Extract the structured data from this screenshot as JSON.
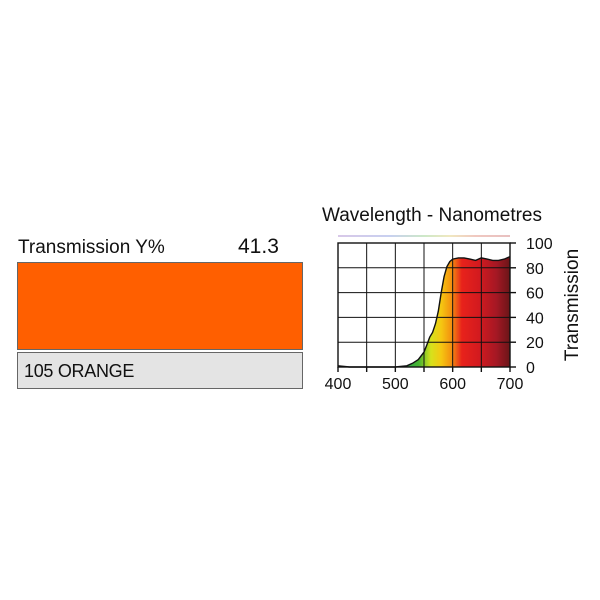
{
  "filter": {
    "transmission_label": "Transmission Y%",
    "transmission_value": "41.3",
    "swatch_color": "#ff5f00",
    "name": "105 ORANGE"
  },
  "chart_data": {
    "type": "area",
    "title": "Wavelength - Nanometres",
    "xlabel": "",
    "ylabel": "Transmission",
    "xlim": [
      400,
      700
    ],
    "ylim": [
      0,
      100
    ],
    "x_ticks": [
      400,
      500,
      600,
      700
    ],
    "y_ticks": [
      0,
      20,
      40,
      60,
      80,
      100
    ],
    "grid": true,
    "series": [
      {
        "x": [
          400,
          420,
          440,
          460,
          480,
          500,
          520,
          530,
          540,
          550,
          555,
          560,
          565,
          570,
          575,
          580,
          585,
          590,
          595,
          600,
          610,
          620,
          630,
          640,
          650,
          660,
          670,
          680,
          690,
          700
        ],
        "values": [
          1,
          0,
          0,
          0,
          0,
          0,
          1,
          3,
          6,
          12,
          18,
          24,
          28,
          35,
          45,
          60,
          73,
          81,
          85,
          87,
          88,
          88,
          87,
          86,
          88,
          87,
          86,
          86,
          87,
          89
        ]
      }
    ]
  }
}
